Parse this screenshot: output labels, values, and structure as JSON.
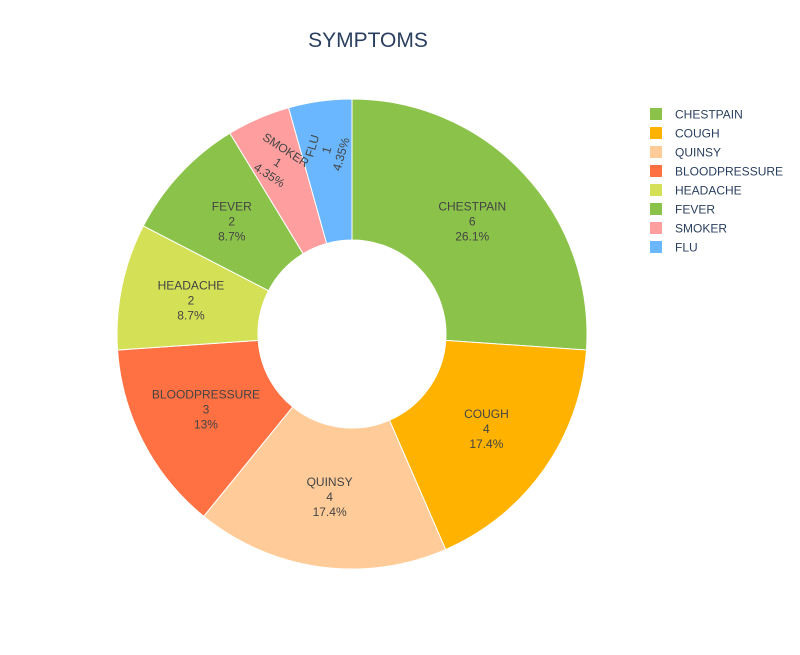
{
  "chart_data": {
    "type": "pie",
    "title": "SYMPTOMS",
    "hole": 0.4,
    "legend_position": "top-right",
    "categories": [
      "CHESTPAIN",
      "COUGH",
      "QUINSY",
      "BLOODPRESSURE",
      "HEADACHE",
      "FEVER",
      "SMOKER",
      "FLU"
    ],
    "values": [
      6,
      4,
      4,
      3,
      2,
      2,
      1,
      1
    ],
    "percents": [
      "26.1%",
      "17.4%",
      "17.4%",
      "13%",
      "8.7%",
      "8.7%",
      "4.35%",
      "4.35%"
    ],
    "colors": [
      "#8bc34a",
      "#ffb300",
      "#ffcc99",
      "#ff7043",
      "#d4e157",
      "#8bc34a",
      "#ff9e9e",
      "#6ab7ff"
    ],
    "slices": [
      {
        "label": "CHESTPAIN",
        "value": 6,
        "value_text": "6",
        "percent": "26.1%",
        "color": "#8bc34a"
      },
      {
        "label": "COUGH",
        "value": 4,
        "value_text": "4",
        "percent": "17.4%",
        "color": "#ffb300"
      },
      {
        "label": "QUINSY",
        "value": 4,
        "value_text": "4",
        "percent": "17.4%",
        "color": "#ffcc99"
      },
      {
        "label": "BLOODPRESSURE",
        "value": 3,
        "value_text": "3",
        "percent": "13%",
        "color": "#ff7043"
      },
      {
        "label": "HEADACHE",
        "value": 2,
        "value_text": "2",
        "percent": "8.7%",
        "color": "#d4e157"
      },
      {
        "label": "FEVER",
        "value": 2,
        "value_text": "2",
        "percent": "8.7%",
        "color": "#8bc34a"
      },
      {
        "label": "SMOKER",
        "value": 1,
        "value_text": "1",
        "percent": "4.35%",
        "color": "#ff9e9e"
      },
      {
        "label": "FLU",
        "value": 1,
        "value_text": "1",
        "percent": "4.35%",
        "color": "#6ab7ff"
      }
    ]
  }
}
